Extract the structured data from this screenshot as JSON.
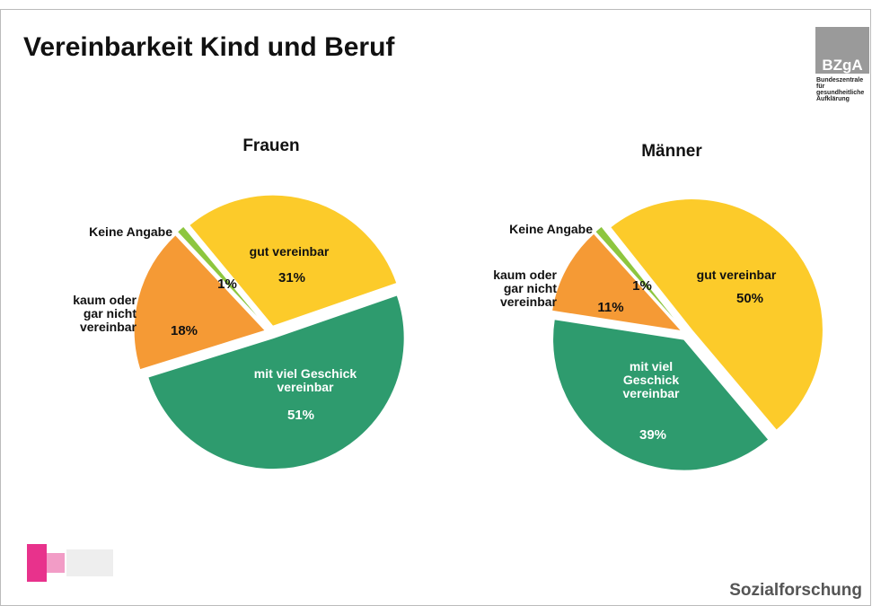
{
  "title": "Vereinbarkeit Kind und Beruf",
  "logo": {
    "name": "BZgA",
    "lines": [
      "Bundeszentrale",
      "für",
      "gesundheitliche",
      "Aufklärung"
    ]
  },
  "footer": "Sozialforschung",
  "chart_data": [
    {
      "type": "pie",
      "title": "Frauen",
      "categories": [
        "gut vereinbar",
        "mit viel Geschick\nvereinbar",
        "kaum oder\ngar nicht\nvereinbar",
        "Keine Angabe"
      ],
      "values": [
        31,
        51,
        18,
        1
      ],
      "value_labels": [
        "31%",
        "51%",
        "18%",
        "1%"
      ],
      "colors": [
        "#fccb2a",
        "#2e9b6e",
        "#f59a35",
        "#8dc63f"
      ]
    },
    {
      "type": "pie",
      "title": "Männer",
      "categories": [
        "gut vereinbar",
        "mit viel\nGeschick\nvereinbar",
        "kaum oder\ngar nicht\nvereinbar",
        "Keine Angabe"
      ],
      "values": [
        50,
        39,
        11,
        1
      ],
      "value_labels": [
        "50%",
        "39%",
        "11%",
        "1%"
      ],
      "colors": [
        "#fccb2a",
        "#2e9b6e",
        "#f59a35",
        "#8dc63f"
      ]
    }
  ]
}
